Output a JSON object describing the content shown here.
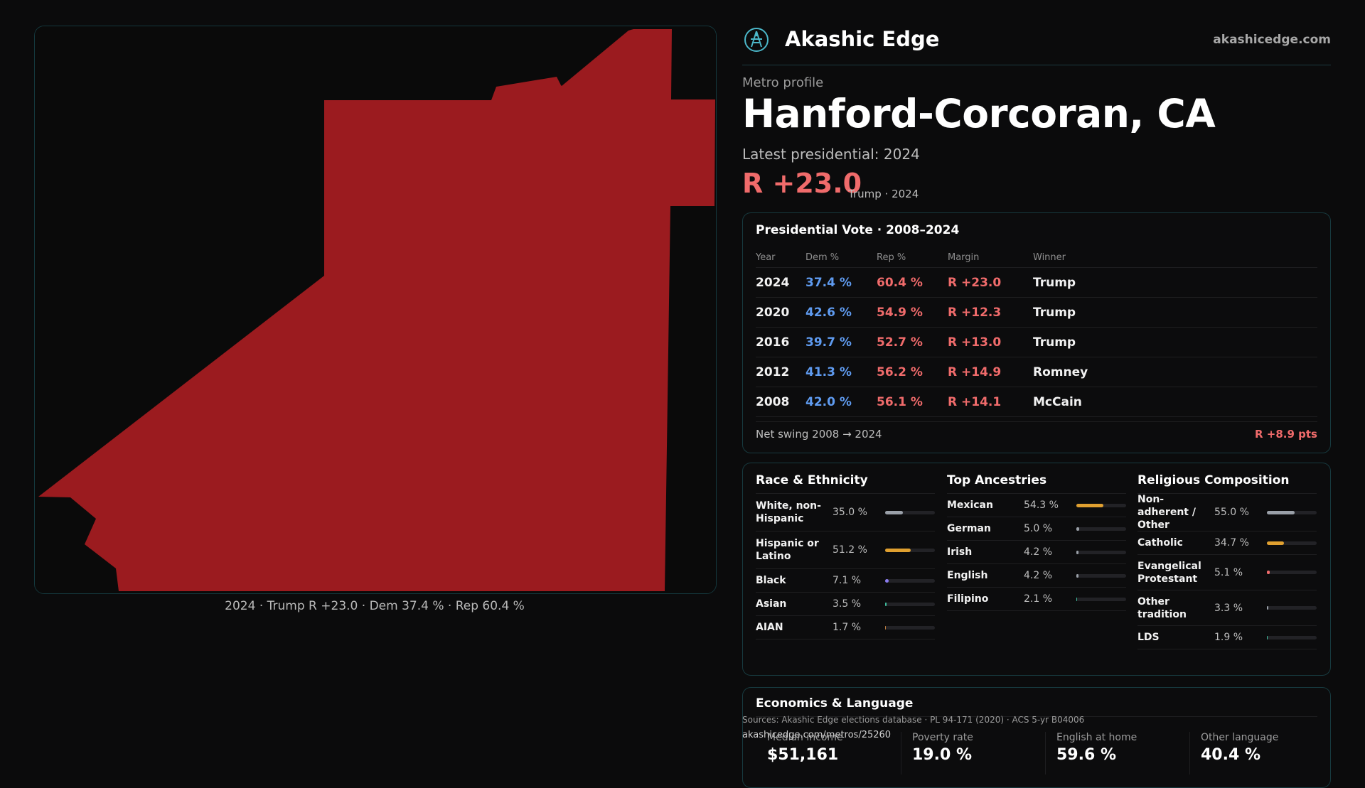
{
  "brand": {
    "name": "Akashic Edge",
    "site": "akashicedge.com"
  },
  "kicker": "Metro profile",
  "title": "Hanford-Corcoran, CA",
  "latest_label": "Latest presidential: 2024",
  "headline_margin": "R +23.0",
  "headline_sub": "Trump · 2024",
  "map": {
    "fill_color": "#9b1b1f",
    "caption": "2024 · Trump R +23.0 · Dem 37.4 % · Rep 60.4 %"
  },
  "vote_card": {
    "title": "Presidential Vote · 2008–2024",
    "headers": [
      "Year",
      "Dem %",
      "Rep %",
      "Margin",
      "Winner"
    ],
    "rows": [
      [
        "2024",
        "37.4 %",
        "60.4 %",
        "R +23.0",
        "Trump"
      ],
      [
        "2020",
        "42.6 %",
        "54.9 %",
        "R +12.3",
        "Trump"
      ],
      [
        "2016",
        "39.7 %",
        "52.7 %",
        "R +13.0",
        "Trump"
      ],
      [
        "2012",
        "41.3 %",
        "56.2 %",
        "R +14.9",
        "Romney"
      ],
      [
        "2008",
        "42.0 %",
        "56.1 %",
        "R +14.1",
        "McCain"
      ]
    ],
    "swing_label": "Net swing 2008 → 2024",
    "swing_value": "R +8.9 pts"
  },
  "race": {
    "title": "Race & Ethnicity",
    "items": [
      {
        "label": "White, non-Hispanic",
        "pct": "35.0 %",
        "value": 35.0,
        "color": "#9aa0a8"
      },
      {
        "label": "Hispanic or Latino",
        "pct": "51.2 %",
        "value": 51.2,
        "color": "#e0a030"
      },
      {
        "label": "Black",
        "pct": "7.1 %",
        "value": 7.1,
        "color": "#8b7cf0"
      },
      {
        "label": "Asian",
        "pct": "3.5 %",
        "value": 3.5,
        "color": "#3fbf9f"
      },
      {
        "label": "AIAN",
        "pct": "1.7 %",
        "value": 1.7,
        "color": "#c08040"
      }
    ]
  },
  "ancestry": {
    "title": "Top Ancestries",
    "items": [
      {
        "label": "Mexican",
        "pct": "54.3 %",
        "value": 54.3,
        "color": "#e0a030"
      },
      {
        "label": "German",
        "pct": "5.0 %",
        "value": 5.0,
        "color": "#9aa0a8"
      },
      {
        "label": "Irish",
        "pct": "4.2 %",
        "value": 4.2,
        "color": "#9aa0a8"
      },
      {
        "label": "English",
        "pct": "4.2 %",
        "value": 4.2,
        "color": "#9aa0a8"
      },
      {
        "label": "Filipino",
        "pct": "2.1 %",
        "value": 2.1,
        "color": "#3fbf9f"
      }
    ]
  },
  "religion": {
    "title": "Religious Composition",
    "items": [
      {
        "label": "Non-adherent / Other",
        "pct": "55.0 %",
        "value": 55.0,
        "color": "#9aa0a8"
      },
      {
        "label": "Catholic",
        "pct": "34.7 %",
        "value": 34.7,
        "color": "#e0a030"
      },
      {
        "label": "Evangelical Protestant",
        "pct": "5.1 %",
        "value": 5.1,
        "color": "#f06b6b"
      },
      {
        "label": "Other tradition",
        "pct": "3.3 %",
        "value": 3.3,
        "color": "#9aa0a8"
      },
      {
        "label": "LDS",
        "pct": "1.9 %",
        "value": 1.9,
        "color": "#3fbf9f"
      }
    ]
  },
  "econ": {
    "title": "Economics & Language",
    "stats": [
      {
        "label": "Median income",
        "value": "$51,161"
      },
      {
        "label": "Poverty rate",
        "value": "19.0 %"
      },
      {
        "label": "English at home",
        "value": "59.6 %"
      },
      {
        "label": "Other language",
        "value": "40.4 %"
      }
    ]
  },
  "footer": {
    "sources": "Sources: Akashic Edge elections database · PL 94-171 (2020) · ACS 5-yr B04006",
    "url": "akashicedge.com/metros/25260"
  }
}
